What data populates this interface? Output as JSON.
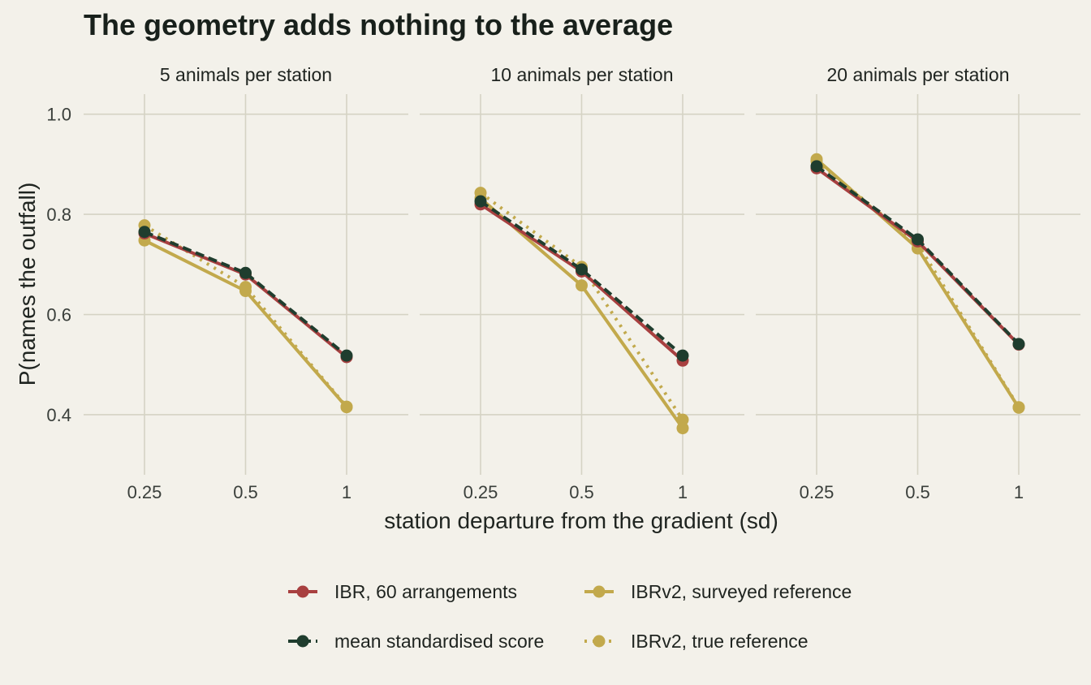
{
  "chart_data": {
    "type": "line",
    "title": "The geometry adds nothing to the average",
    "xlabel": "station departure from the gradient (sd)",
    "ylabel": "P(names the outfall)",
    "x_scale": "log",
    "x_ticks": [
      0.25,
      0.5,
      1
    ],
    "x_tick_labels": [
      "0.25",
      "0.5",
      "1"
    ],
    "ylim": [
      0.28,
      1.04
    ],
    "y_ticks": [
      0.4,
      0.6,
      0.8,
      1.0
    ],
    "y_tick_labels": [
      "0.4",
      "0.6",
      "0.8",
      "1.0"
    ],
    "grid": true,
    "legend_position": "bottom",
    "legend": [
      {
        "key": "ibr",
        "label": "IBR, 60 arrangements",
        "color": "#a84040",
        "dash": "solid"
      },
      {
        "key": "ibrv2_surveyed",
        "label": "IBRv2, surveyed reference",
        "color": "#c2a94c",
        "dash": "solid"
      },
      {
        "key": "mean_std",
        "label": "mean standardised score",
        "color": "#1f3d2e",
        "dash": "dashed"
      },
      {
        "key": "ibrv2_true",
        "label": "IBRv2, true reference",
        "color": "#c2a94c",
        "dash": "dotted"
      }
    ],
    "panels": [
      {
        "label": "5 animals per station",
        "x": [
          0.25,
          0.5,
          1
        ],
        "series": {
          "ibr": [
            0.762,
            0.68,
            0.515
          ],
          "mean_std": [
            0.765,
            0.683,
            0.518
          ],
          "ibrv2_surveyed": [
            0.748,
            0.647,
            0.415
          ],
          "ibrv2_true": [
            0.778,
            0.655,
            0.416
          ]
        }
      },
      {
        "label": "10 animals per station",
        "x": [
          0.25,
          0.5,
          1
        ],
        "series": {
          "ibr": [
            0.82,
            0.686,
            0.508
          ],
          "mean_std": [
            0.826,
            0.69,
            0.518
          ],
          "ibrv2_surveyed": [
            0.832,
            0.658,
            0.373
          ],
          "ibrv2_true": [
            0.843,
            0.695,
            0.39
          ]
        }
      },
      {
        "label": "20 animals per station",
        "x": [
          0.25,
          0.5,
          1
        ],
        "series": {
          "ibr": [
            0.892,
            0.746,
            0.54
          ],
          "mean_std": [
            0.896,
            0.75,
            0.541
          ],
          "ibrv2_surveyed": [
            0.91,
            0.732,
            0.414
          ],
          "ibrv2_true": [
            0.906,
            0.741,
            0.415
          ]
        }
      }
    ]
  }
}
